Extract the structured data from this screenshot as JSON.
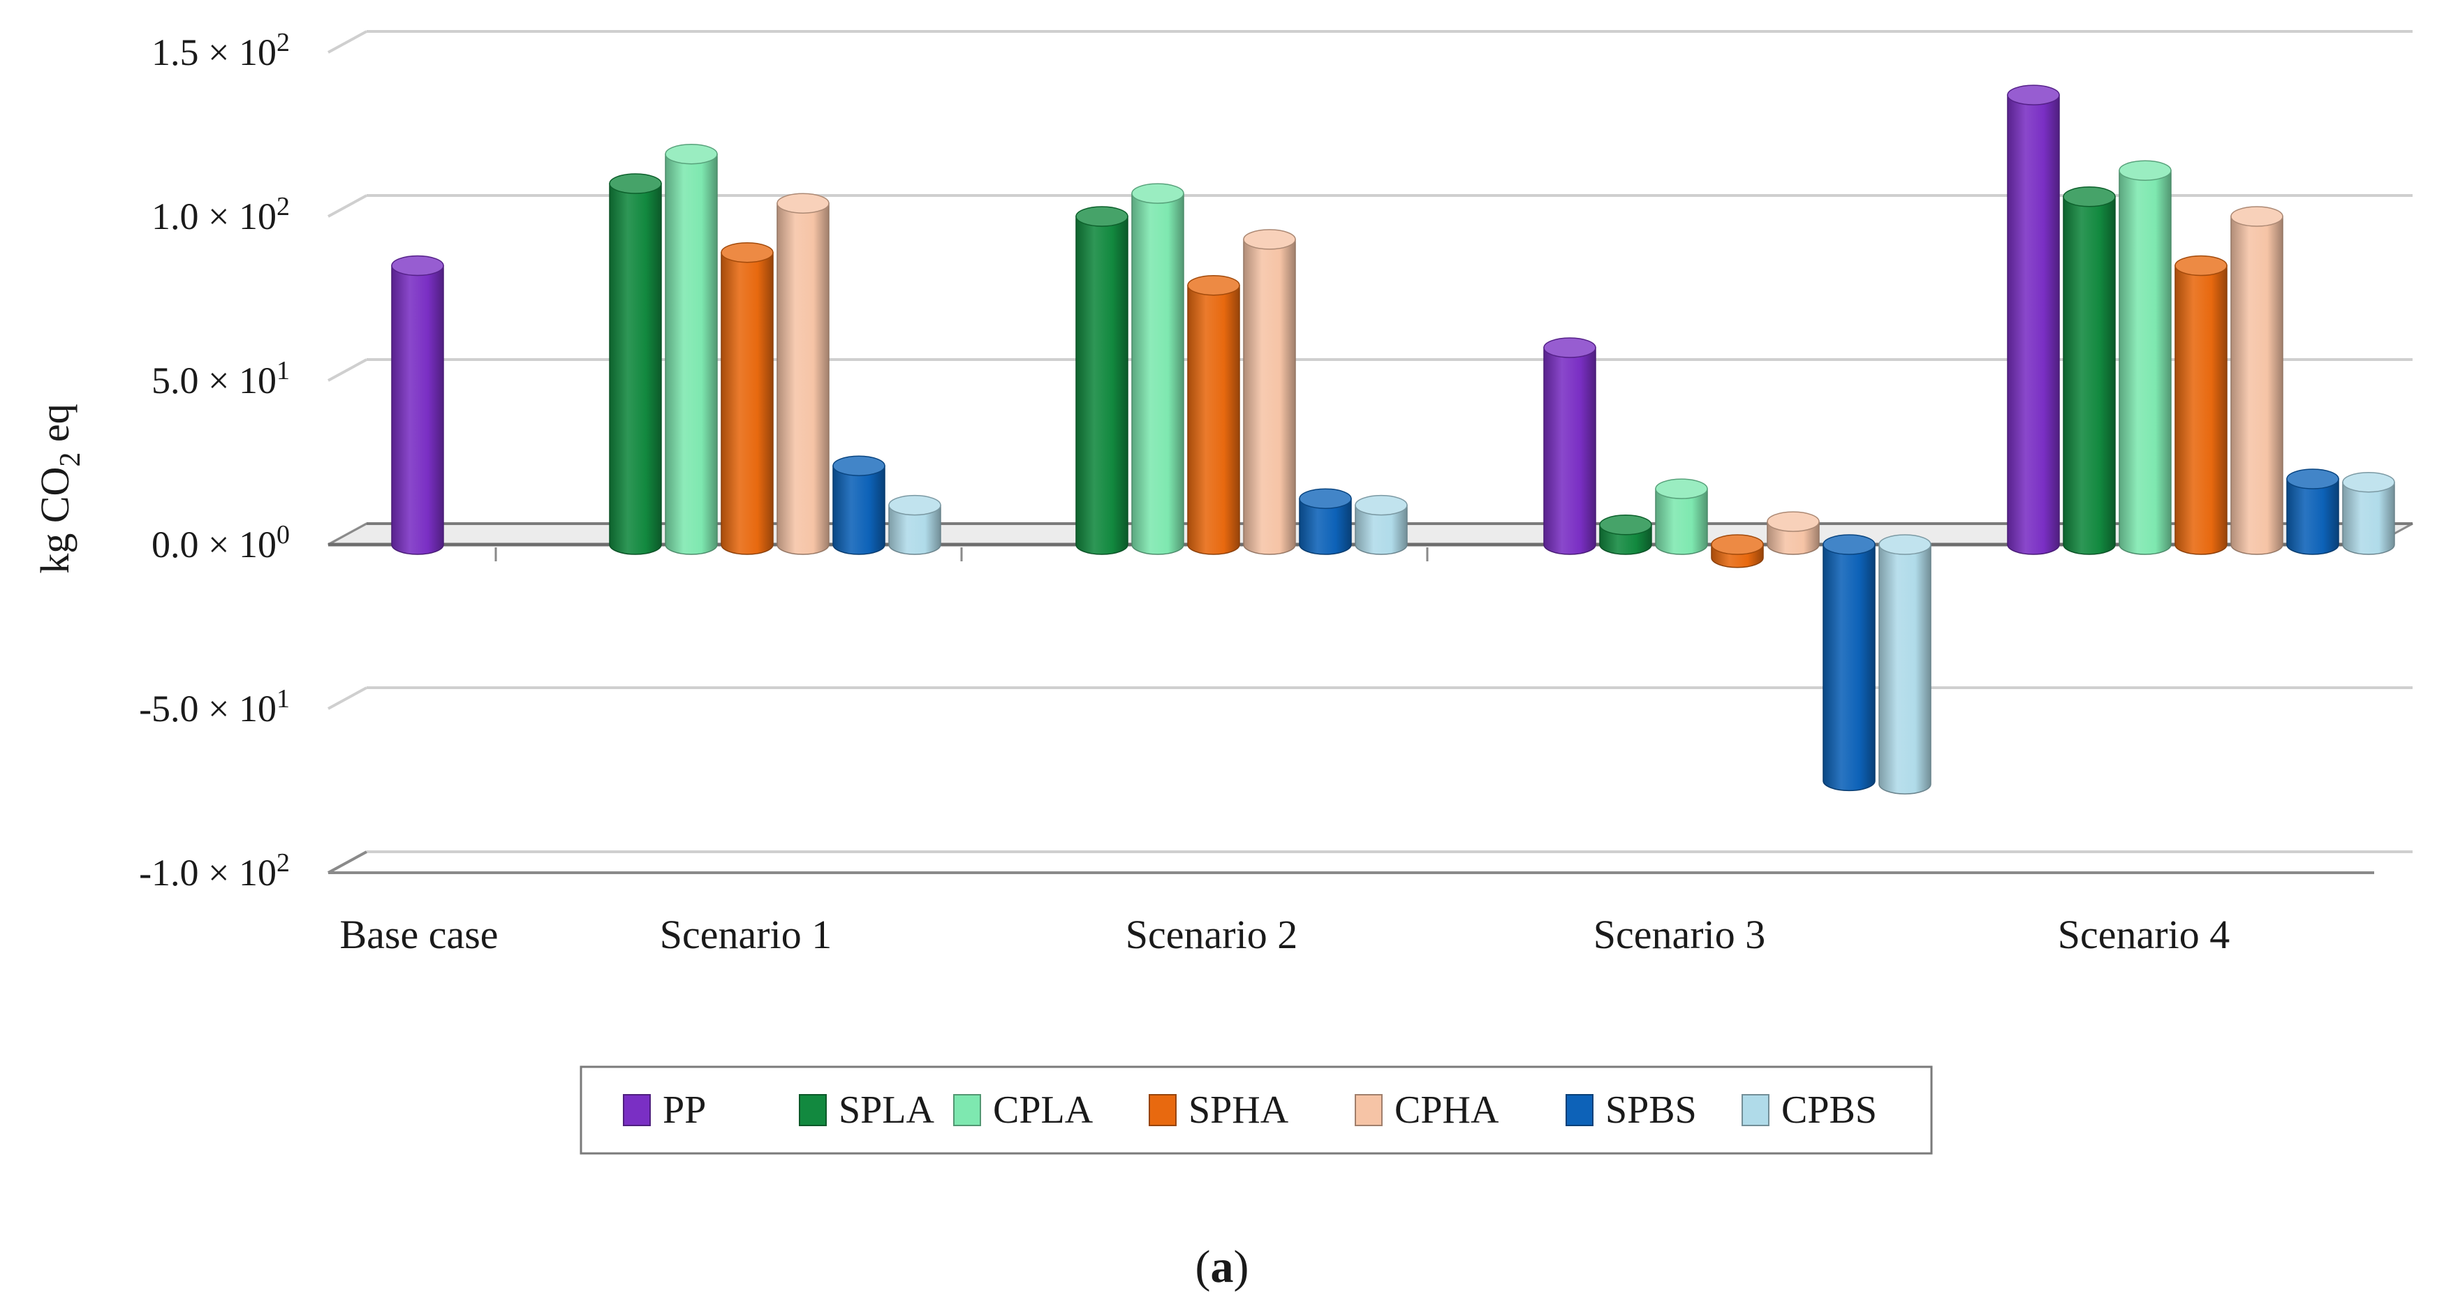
{
  "chart_data": {
    "type": "bar",
    "style": "3d-cylinder",
    "ylabel": "kg CO2 eq",
    "ylim": [
      -100,
      150
    ],
    "grid": true,
    "yticks": [
      {
        "value": 150,
        "mantissa": "1.5 × 10",
        "exp": "2"
      },
      {
        "value": 100,
        "mantissa": "1.0 × 10",
        "exp": "2"
      },
      {
        "value": 50,
        "mantissa": "5.0 × 10",
        "exp": "1"
      },
      {
        "value": 0,
        "mantissa": "0.0 × 10",
        "exp": "0"
      },
      {
        "value": -50,
        "mantissa": "-5.0 × 10",
        "exp": "1"
      },
      {
        "value": -100,
        "mantissa": "-1.0 × 10",
        "exp": "2"
      }
    ],
    "categories": [
      "Base case",
      "Scenario 1",
      "Scenario 2",
      "Scenario 3",
      "Scenario 4"
    ],
    "series": [
      {
        "name": "PP",
        "color": "#7a2fc4",
        "values": [
          85,
          null,
          null,
          60,
          137
        ]
      },
      {
        "name": "SPLA",
        "color": "#12893f",
        "values": [
          null,
          110,
          100,
          6,
          106
        ]
      },
      {
        "name": "CPLA",
        "color": "#7ee8b0",
        "values": [
          null,
          119,
          107,
          17,
          114
        ]
      },
      {
        "name": "SPHA",
        "color": "#e8690f",
        "values": [
          null,
          89,
          79,
          -4,
          85
        ]
      },
      {
        "name": "CPHA",
        "color": "#f6c4a6",
        "values": [
          null,
          104,
          93,
          7,
          100
        ]
      },
      {
        "name": "SPBS",
        "color": "#0d62b8",
        "values": [
          null,
          24,
          14,
          -72,
          20
        ]
      },
      {
        "name": "CPBS",
        "color": "#b0dbe9",
        "values": [
          null,
          12,
          12,
          -73,
          19
        ]
      }
    ],
    "legend_position": "bottom"
  },
  "caption": {
    "open": "(",
    "letter": "a",
    "close": ")"
  }
}
